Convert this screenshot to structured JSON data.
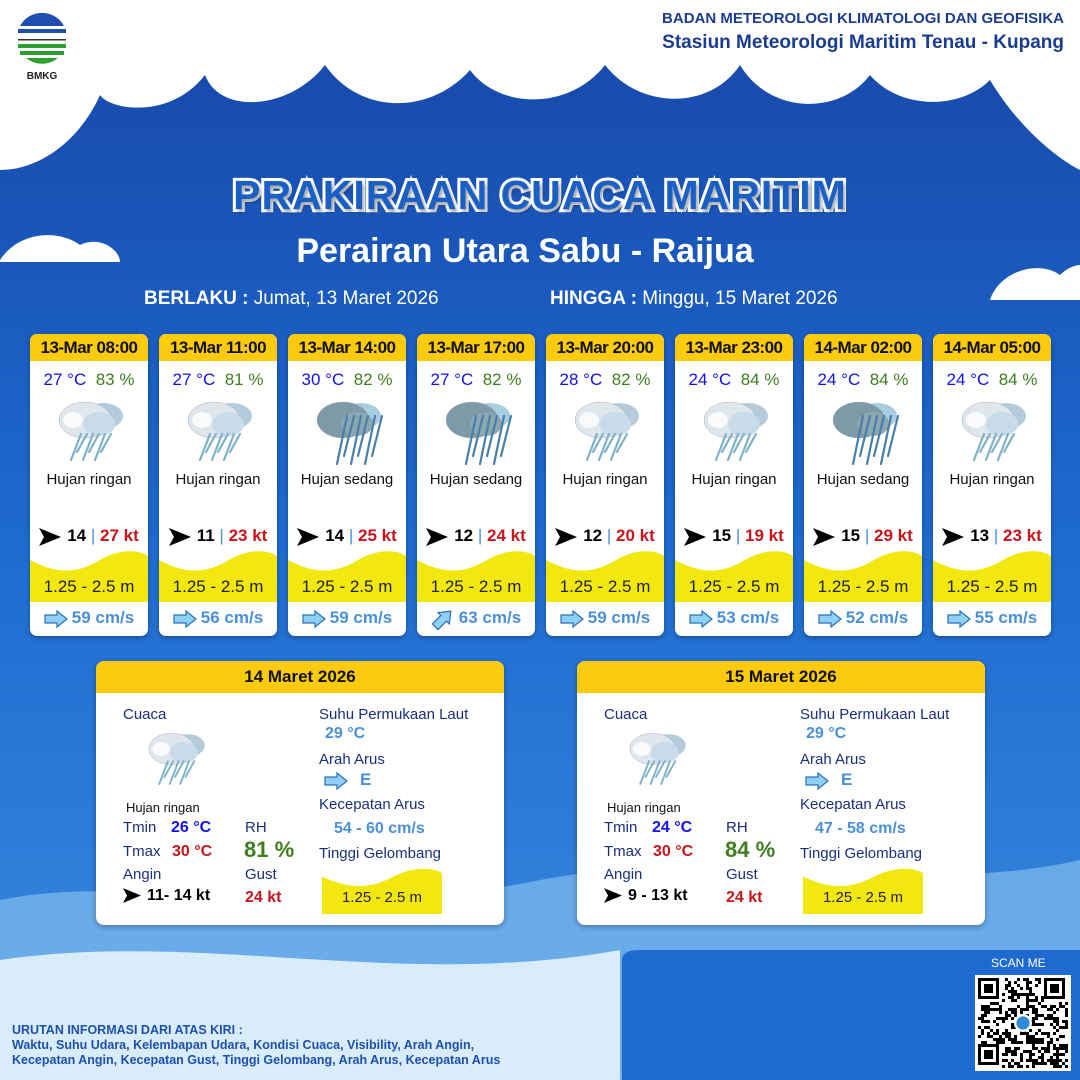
{
  "header": {
    "logo_text": "BMKG",
    "org": "BADAN METEOROLOGI KLIMATOLOGI DAN GEOFISIKA",
    "station": "Stasiun Meteorologi Maritim Tenau - Kupang"
  },
  "title": "PRAKIRAAN CUACA MARITIM",
  "area": "Perairan Utara Sabu - Raijua",
  "valid_from_label": "BERLAKU :",
  "valid_from": "Jumat, 13 Maret 2026",
  "valid_to_label": "HINGGA :",
  "valid_to": "Minggu, 15 Maret 2026",
  "colors": {
    "background": "#1c63c8",
    "header_yellow": "#fccb0e",
    "wave_yellow": "#f2e80f",
    "temp": "#1111ee",
    "rh": "#3f7d1f",
    "gust": "#c8141a",
    "current": "#4a90d9"
  },
  "forecasts": [
    {
      "time": "13-Mar 08:00",
      "temp": "27 °C",
      "rh": "83 %",
      "icon": "light-rain-icon",
      "weather": "Hujan ringan",
      "wind": "14",
      "gust": "27 kt",
      "wave": "1.25 - 2.5 m",
      "current_dir": "E",
      "current": "59 cm/s"
    },
    {
      "time": "13-Mar 11:00",
      "temp": "27 °C",
      "rh": "81 %",
      "icon": "light-rain-icon",
      "weather": "Hujan ringan",
      "wind": "11",
      "gust": "23 kt",
      "wave": "1.25 - 2.5 m",
      "current_dir": "E",
      "current": "56 cm/s"
    },
    {
      "time": "13-Mar 14:00",
      "temp": "30 °C",
      "rh": "82 %",
      "icon": "moderate-rain-icon",
      "weather": "Hujan sedang",
      "wind": "14",
      "gust": "25 kt",
      "wave": "1.25 - 2.5 m",
      "current_dir": "E",
      "current": "59 cm/s"
    },
    {
      "time": "13-Mar 17:00",
      "temp": "27 °C",
      "rh": "82 %",
      "icon": "moderate-rain-icon",
      "weather": "Hujan sedang",
      "wind": "12",
      "gust": "24 kt",
      "wave": "1.25 - 2.5 m",
      "current_dir": "NE",
      "current": "63 cm/s"
    },
    {
      "time": "13-Mar 20:00",
      "temp": "28 °C",
      "rh": "82 %",
      "icon": "light-rain-icon",
      "weather": "Hujan ringan",
      "wind": "12",
      "gust": "20 kt",
      "wave": "1.25 - 2.5 m",
      "current_dir": "E",
      "current": "59 cm/s"
    },
    {
      "time": "13-Mar 23:00",
      "temp": "24 °C",
      "rh": "84 %",
      "icon": "light-rain-icon",
      "weather": "Hujan ringan",
      "wind": "15",
      "gust": "19 kt",
      "wave": "1.25 - 2.5 m",
      "current_dir": "E",
      "current": "53 cm/s"
    },
    {
      "time": "14-Mar 02:00",
      "temp": "24 °C",
      "rh": "84 %",
      "icon": "moderate-rain-icon",
      "weather": "Hujan sedang",
      "wind": "15",
      "gust": "29 kt",
      "wave": "1.25 - 2.5 m",
      "current_dir": "E",
      "current": "52 cm/s"
    },
    {
      "time": "14-Mar 05:00",
      "temp": "24 °C",
      "rh": "84 %",
      "icon": "light-rain-icon",
      "weather": "Hujan ringan",
      "wind": "13",
      "gust": "23 kt",
      "wave": "1.25 - 2.5 m",
      "current_dir": "E",
      "current": "55 cm/s"
    }
  ],
  "labels": {
    "cuaca": "Cuaca",
    "sst": "Suhu Permukaan Laut",
    "arah": "Arah Arus",
    "kec": "Kecepatan Arus",
    "tinggi": "Tinggi Gelombang",
    "tmin": "Tmin",
    "tmax": "Tmax",
    "rh": "RH",
    "angin": "Angin",
    "gust": "Gust"
  },
  "daily": [
    {
      "date": "14 Maret 2026",
      "icon": "light-rain-icon",
      "weather": "Hujan ringan",
      "tmin": "26 °C",
      "tmax": "30 °C",
      "rh": "81 %",
      "wind": "11- 14 kt",
      "gust": "24 kt",
      "sst": "29 °C",
      "current_dir": "E",
      "current_speed": "54  - 60 cm/s",
      "wave": "1.25 - 2.5 m"
    },
    {
      "date": "15 Maret 2026",
      "icon": "light-rain-icon",
      "weather": "Hujan ringan",
      "tmin": "24 °C",
      "tmax": "30 °C",
      "rh": "84 %",
      "wind": "9  - 13 kt",
      "gust": "24 kt",
      "sst": "29 °C",
      "current_dir": "E",
      "current_speed": "47  - 58 cm/s",
      "wave": "1.25 - 2.5 m"
    }
  ],
  "footer": {
    "title": "URUTAN INFORMASI DARI ATAS KIRI :",
    "line1": "Waktu, Suhu Udara, Kelembapan Udara, Kondisi Cuaca, Visibility, Arah Angin,",
    "line2": "Kecepatan Angin, Kecepatan Gust, Tinggi Gelombang, Arah Arus, Kecepatan Arus"
  },
  "scan_label": "SCAN ME"
}
